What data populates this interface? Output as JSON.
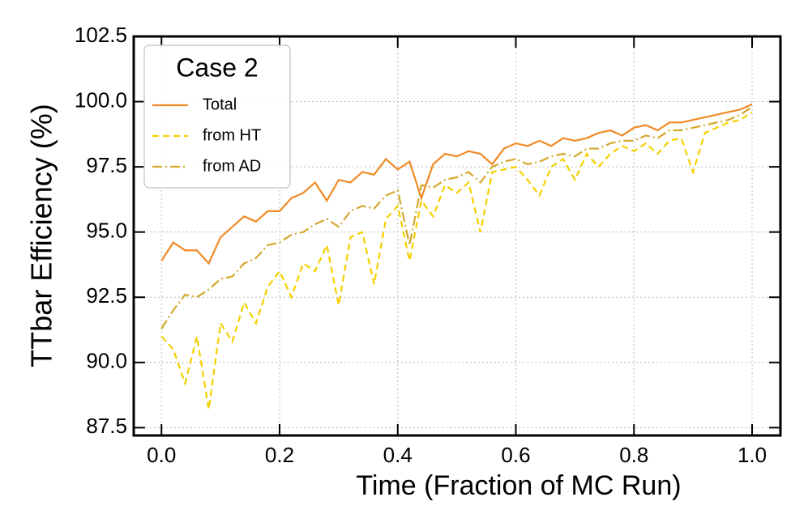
{
  "chart_data": {
    "type": "line",
    "xlabel": "Time (Fraction of MC Run)",
    "ylabel": "TTbar Efficiency (%)",
    "legend_title": "Case 2",
    "legend": "upper left",
    "grid": true,
    "xlim": [
      -0.047,
      1.048
    ],
    "ylim": [
      87.2,
      102.5
    ],
    "xticks": [
      {
        "value": 0,
        "label": "0.0"
      },
      0.2,
      0.4,
      0.6,
      0.8,
      {
        "value": 1,
        "label": "1.0"
      }
    ],
    "yticks": [
      87.5,
      {
        "value": 90,
        "label": "90.0"
      },
      92.5,
      {
        "value": 95,
        "label": "95.0"
      },
      97.5,
      {
        "value": 100,
        "label": "100.0"
      },
      102.5
    ],
    "x": [
      0,
      0.02,
      0.04,
      0.06,
      0.08,
      0.1,
      0.12,
      0.14,
      0.16,
      0.18,
      0.2,
      0.22,
      0.24,
      0.26,
      0.28,
      0.3,
      0.32,
      0.34,
      0.36,
      0.38,
      0.4,
      0.42,
      0.44,
      0.46,
      0.48,
      0.5,
      0.52,
      0.54,
      0.56,
      0.58,
      0.6,
      0.62,
      0.64,
      0.66,
      0.68,
      0.7,
      0.72,
      0.74,
      0.76,
      0.78,
      0.8,
      0.82,
      0.84,
      0.86,
      0.88,
      0.9,
      0.92,
      0.94,
      0.96,
      0.98,
      1.0
    ],
    "series": [
      {
        "name": "Total",
        "color": "#f08a24",
        "dash": "solid",
        "values": [
          93.9,
          94.6,
          94.3,
          94.3,
          93.8,
          94.8,
          95.2,
          95.6,
          95.4,
          95.8,
          95.8,
          96.3,
          96.5,
          96.9,
          96.2,
          97.0,
          96.9,
          97.3,
          97.2,
          97.8,
          97.4,
          97.7,
          96.3,
          97.6,
          98.0,
          97.9,
          98.1,
          98.0,
          97.6,
          98.2,
          98.4,
          98.3,
          98.5,
          98.3,
          98.6,
          98.5,
          98.6,
          98.8,
          98.9,
          98.7,
          99.0,
          99.1,
          98.9,
          99.2,
          99.2,
          99.3,
          99.4,
          99.5,
          99.6,
          99.7,
          99.9
        ]
      },
      {
        "name": "from HT",
        "color": "#f5d000",
        "dash": "dashed",
        "values": [
          91.0,
          90.5,
          89.2,
          91.0,
          88.2,
          91.5,
          90.8,
          92.3,
          91.5,
          92.9,
          93.5,
          92.5,
          93.8,
          93.5,
          94.5,
          92.2,
          94.8,
          95.0,
          93.0,
          95.5,
          96.0,
          93.9,
          96.2,
          95.6,
          96.8,
          96.5,
          96.9,
          95.0,
          97.3,
          97.4,
          97.5,
          97.0,
          96.4,
          97.5,
          97.8,
          97.0,
          98.0,
          97.5,
          98.0,
          98.3,
          98.1,
          98.4,
          98.0,
          98.5,
          98.6,
          97.3,
          98.8,
          99.0,
          99.2,
          99.3,
          99.6
        ]
      },
      {
        "name": "from AD",
        "color": "#d4a72c",
        "dash": "dashdot",
        "values": [
          91.3,
          92.0,
          92.6,
          92.5,
          92.8,
          93.2,
          93.3,
          93.8,
          94.0,
          94.5,
          94.6,
          94.9,
          95.0,
          95.3,
          95.5,
          95.2,
          95.8,
          96.0,
          95.9,
          96.4,
          96.6,
          94.5,
          96.8,
          96.7,
          97.0,
          97.1,
          97.3,
          96.9,
          97.5,
          97.7,
          97.8,
          97.6,
          97.7,
          97.9,
          98.0,
          97.9,
          98.2,
          98.2,
          98.4,
          98.5,
          98.5,
          98.7,
          98.6,
          98.9,
          98.9,
          99.0,
          99.1,
          99.2,
          99.3,
          99.5,
          99.8
        ]
      }
    ]
  }
}
